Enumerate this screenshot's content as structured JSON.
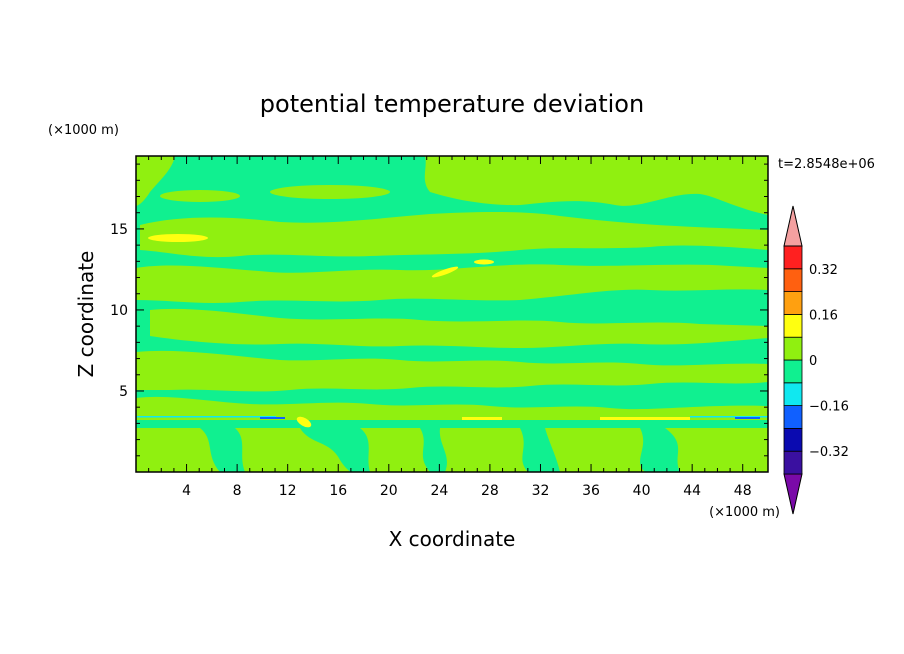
{
  "chart_data": {
    "type": "heatmap",
    "title": "potential temperature deviation",
    "xlabel": "X coordinate",
    "ylabel": "Z coordinate",
    "x_unit": "(×1000 m)",
    "y_unit": "(×1000 m)",
    "time_label": "t=2.8548e+06",
    "xlim": [
      0,
      50
    ],
    "ylim": [
      0,
      19.5
    ],
    "x_ticks": [
      4,
      8,
      12,
      16,
      20,
      24,
      28,
      32,
      36,
      40,
      44,
      48
    ],
    "y_ticks": [
      5,
      10,
      15
    ],
    "colorbar": {
      "levels": [
        -0.4,
        -0.32,
        -0.24,
        -0.16,
        -0.08,
        0,
        0.08,
        0.16,
        0.24,
        0.32,
        0.4
      ],
      "tick_labels": [
        "0.32",
        "0.16",
        "0",
        "−0.16",
        "−0.32"
      ],
      "tick_values": [
        0.32,
        0.16,
        0,
        -0.16,
        -0.32
      ],
      "colors_low_to_high": [
        "#7a0aa8",
        "#3a10a0",
        "#0a0ab0",
        "#1060ff",
        "#10e8f0",
        "#10f090",
        "#90f010",
        "#ffff10",
        "#ffa010",
        "#ff6010",
        "#ff2020",
        "#f4a0a0"
      ],
      "extend": "both"
    },
    "field_summary": {
      "background_color": "#10f090",
      "background_range": [
        -0.08,
        0
      ],
      "dominant_positive_color": "#90f010",
      "dominant_positive_range": [
        0,
        0.08
      ],
      "notable_features": [
        {
          "kind": "warm band",
          "x": [
            1,
            6
          ],
          "z": 14.8,
          "range": [
            0.08,
            0.16
          ]
        },
        {
          "kind": "warm streak",
          "x": [
            24,
            28
          ],
          "z": 13,
          "range": [
            0.08,
            0.16
          ]
        },
        {
          "kind": "warm spot",
          "x": [
            12,
            14
          ],
          "z": 3.3,
          "range": [
            0.08,
            0.16
          ]
        },
        {
          "kind": "cold streaks",
          "x": [
            10,
            13
          ],
          "z": 3.6,
          "range": [
            -0.16,
            -0.08
          ]
        },
        {
          "kind": "warm line",
          "x": [
            26,
            46
          ],
          "z": 3.5,
          "range": [
            0.08,
            0.16
          ]
        },
        {
          "kind": "cold streaks",
          "x": [
            44,
            50
          ],
          "z": 3.6,
          "range": [
            -0.16,
            -0.08
          ]
        }
      ]
    }
  }
}
